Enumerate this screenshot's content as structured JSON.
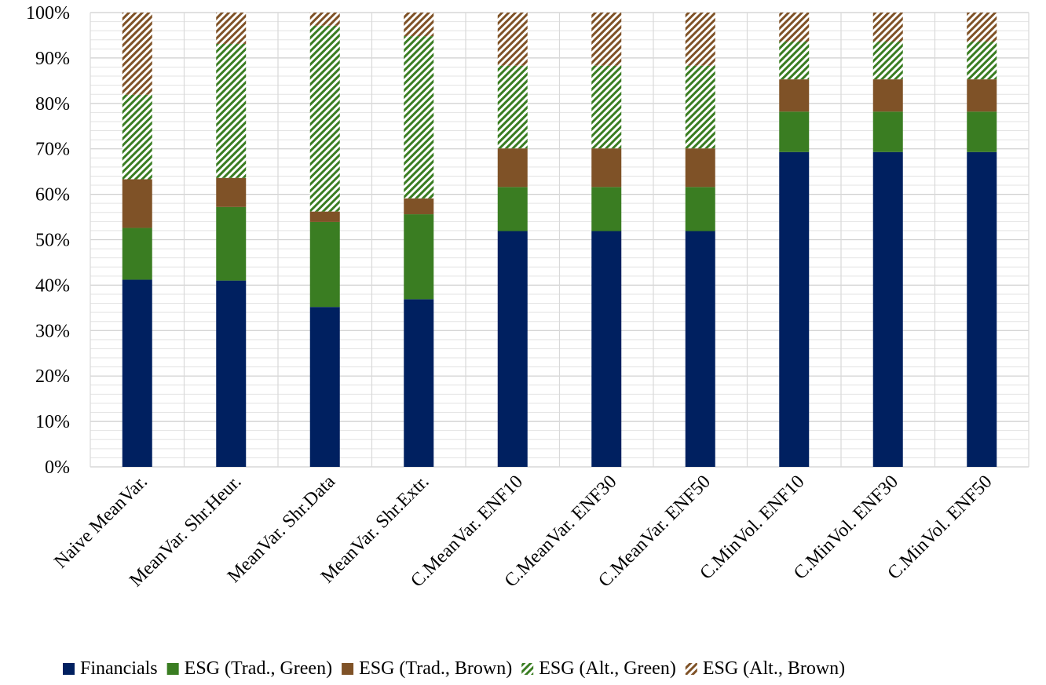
{
  "chart_data": {
    "type": "bar",
    "stacked": true,
    "percent": true,
    "title": "",
    "xlabel": "",
    "ylabel": "",
    "ylim": [
      0,
      100
    ],
    "yticks": [
      "0%",
      "10%",
      "20%",
      "30%",
      "40%",
      "50%",
      "60%",
      "70%",
      "80%",
      "90%",
      "100%"
    ],
    "grid": true,
    "legend_position": "bottom",
    "categories": [
      "Naive MeanVar.",
      "MeanVar. Shr.Heur.",
      "MeanVar. Shr.Data",
      "MeanVar. Shr.Extr.",
      "C.MeanVar. ENF10",
      "C.MeanVar. ENF30",
      "C.MeanVar. ENF50",
      "C.MinVol. ENF10",
      "C.MinVol. ENF30",
      "C.MinVol. ENF50"
    ],
    "series": [
      {
        "name": "Financials",
        "color": "#002060",
        "pattern": "solid",
        "values": [
          41.2,
          41.0,
          35.2,
          36.9,
          51.9,
          51.9,
          51.9,
          69.3,
          69.3,
          69.3
        ]
      },
      {
        "name": "ESG (Trad., Green)",
        "color": "#3A7D22",
        "pattern": "solid",
        "values": [
          11.4,
          16.2,
          18.7,
          18.7,
          9.7,
          9.7,
          9.7,
          8.9,
          8.9,
          8.9
        ]
      },
      {
        "name": "ESG (Trad., Brown)",
        "color": "#7F5227",
        "pattern": "solid",
        "values": [
          10.7,
          6.4,
          2.3,
          3.5,
          8.5,
          8.5,
          8.5,
          7.1,
          7.1,
          7.1
        ]
      },
      {
        "name": "ESG (Alt., Green)",
        "color": "#3A7D22",
        "pattern": "diagonal",
        "values": [
          18.6,
          29.5,
          40.9,
          35.7,
          18.2,
          18.2,
          18.2,
          8.3,
          8.3,
          8.3
        ]
      },
      {
        "name": "ESG (Alt., Brown)",
        "color": "#7F5227",
        "pattern": "diagonal",
        "values": [
          18.1,
          6.9,
          2.9,
          5.2,
          11.7,
          11.7,
          11.7,
          6.4,
          6.4,
          6.4
        ]
      }
    ]
  }
}
